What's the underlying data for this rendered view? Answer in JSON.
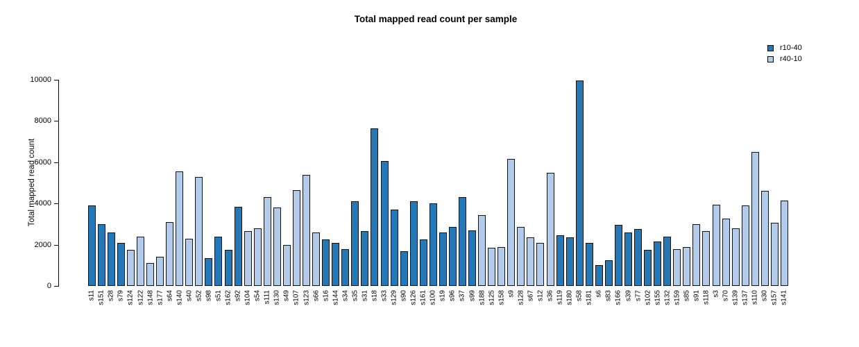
{
  "title": "Total mapped read count per sample",
  "colors": {
    "dark_series": "#2478b5",
    "light_series": "#b1cbe8",
    "bar_border": "#111111",
    "axis": "#000000"
  },
  "legend": {
    "items": [
      {
        "label": "r10-40",
        "series": "r10-40"
      },
      {
        "label": "r40-10",
        "series": "r40-10"
      }
    ]
  },
  "chart_data": {
    "type": "bar",
    "title": "Total mapped read count per sample",
    "xlabel": "",
    "ylabel": "Total mapped read count",
    "ylim": [
      0,
      10000
    ],
    "yticks": [
      0,
      2000,
      4000,
      6000,
      8000,
      10000
    ],
    "grid": false,
    "legend_position": "top-right",
    "series_names": [
      "r10-40",
      "r40-10"
    ],
    "series_colors": {
      "r10-40": "#2478b5",
      "r40-10": "#b1cbe8"
    },
    "categories": [
      "s11",
      "s151",
      "s28",
      "s79",
      "s124",
      "s122",
      "s148",
      "s177",
      "s64",
      "s140",
      "s40",
      "s52",
      "s98",
      "s51",
      "s162",
      "s92",
      "s104",
      "s54",
      "s111",
      "s130",
      "s49",
      "s107",
      "s123",
      "s66",
      "s16",
      "s144",
      "s34",
      "s35",
      "s31",
      "s18",
      "s33",
      "s129",
      "s90",
      "s126",
      "s161",
      "s100",
      "s19",
      "s96",
      "s37",
      "s99",
      "s188",
      "s125",
      "s158",
      "s9",
      "s128",
      "s67",
      "s12",
      "s36",
      "s119",
      "s180",
      "s58",
      "s181",
      "s6",
      "s83",
      "s166",
      "s39",
      "s77",
      "s102",
      "s155",
      "s132",
      "s159",
      "s85",
      "s91",
      "s118",
      "s3",
      "s70",
      "s139",
      "s137",
      "s110",
      "s30",
      "s157",
      "s141"
    ],
    "values": [
      3900,
      3000,
      2600,
      2100,
      1750,
      2400,
      1100,
      1400,
      3100,
      5550,
      2300,
      5300,
      1350,
      2400,
      1750,
      3850,
      2650,
      2800,
      4300,
      3800,
      2000,
      4650,
      5400,
      2600,
      2250,
      2100,
      1800,
      4100,
      2650,
      7650,
      6050,
      3700,
      1700,
      4100,
      2250,
      4000,
      2600,
      2850,
      4300,
      2700,
      3450,
      1850,
      1900,
      6150,
      2850,
      2350,
      2100,
      5500,
      2450,
      2350,
      9950,
      2100,
      1000,
      1250,
      2950,
      2600,
      2750,
      1750,
      2150,
      2400,
      1800,
      1900,
      3000,
      2650,
      3950,
      3250,
      2800,
      3900,
      6500,
      4600,
      3050,
      4150
    ],
    "bar_series": [
      "r10-40",
      "r10-40",
      "r10-40",
      "r10-40",
      "r40-10",
      "r40-10",
      "r40-10",
      "r40-10",
      "r40-10",
      "r40-10",
      "r40-10",
      "r40-10",
      "r10-40",
      "r10-40",
      "r10-40",
      "r10-40",
      "r40-10",
      "r40-10",
      "r40-10",
      "r40-10",
      "r40-10",
      "r40-10",
      "r40-10",
      "r40-10",
      "r10-40",
      "r10-40",
      "r10-40",
      "r10-40",
      "r10-40",
      "r10-40",
      "r10-40",
      "r10-40",
      "r10-40",
      "r10-40",
      "r10-40",
      "r10-40",
      "r10-40",
      "r10-40",
      "r10-40",
      "r10-40",
      "r40-10",
      "r40-10",
      "r40-10",
      "r40-10",
      "r40-10",
      "r40-10",
      "r40-10",
      "r40-10",
      "r10-40",
      "r10-40",
      "r10-40",
      "r10-40",
      "r10-40",
      "r10-40",
      "r10-40",
      "r10-40",
      "r10-40",
      "r10-40",
      "r10-40",
      "r10-40",
      "r40-10",
      "r40-10",
      "r40-10",
      "r40-10",
      "r40-10",
      "r40-10",
      "r40-10",
      "r40-10",
      "r40-10",
      "r40-10",
      "r40-10",
      "r40-10"
    ]
  }
}
